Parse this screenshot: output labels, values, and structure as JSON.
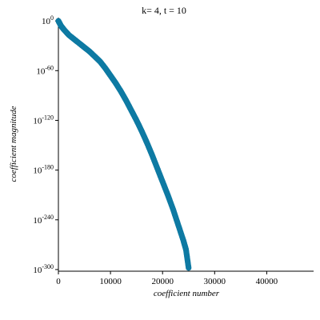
{
  "chart_data": {
    "type": "scatter",
    "title": "k= 4, t = 10",
    "xlabel": "coefficient number",
    "ylabel": "coefficient magnitude",
    "xscale": "linear",
    "yscale": "log",
    "xlim": [
      0,
      49000
    ],
    "ylim_log10": [
      -302,
      4
    ],
    "x_ticks": [
      0,
      10000,
      20000,
      30000,
      40000
    ],
    "y_ticks": [
      {
        "base": "10",
        "exp": "0",
        "log10": 0
      },
      {
        "base": "10",
        "exp": "-60",
        "log10": -60
      },
      {
        "base": "10",
        "exp": "-120",
        "log10": -120
      },
      {
        "base": "10",
        "exp": "-180",
        "log10": -180
      },
      {
        "base": "10",
        "exp": "-240",
        "log10": -240
      },
      {
        "base": "10",
        "exp": "-300",
        "log10": -300
      }
    ],
    "grid": false,
    "color": "#0e7aa3",
    "series": [
      {
        "x": [
          0,
          500,
          1000,
          2000,
          3000,
          4000,
          5000,
          6000,
          7000,
          8000,
          9000,
          10000,
          11000,
          12000,
          13000,
          14000,
          15000,
          16000,
          17000,
          18000,
          19000,
          20000,
          21000,
          22000,
          23000,
          24000,
          24500,
          25000
        ],
        "log10_y": [
          0,
          -6,
          -10,
          -17,
          -22,
          -27,
          -32,
          -37,
          -43,
          -49,
          -57,
          -66,
          -75,
          -85,
          -96,
          -108,
          -120,
          -133,
          -147,
          -162,
          -178,
          -194,
          -210,
          -227,
          -246,
          -265,
          -276,
          -298
        ]
      }
    ]
  }
}
